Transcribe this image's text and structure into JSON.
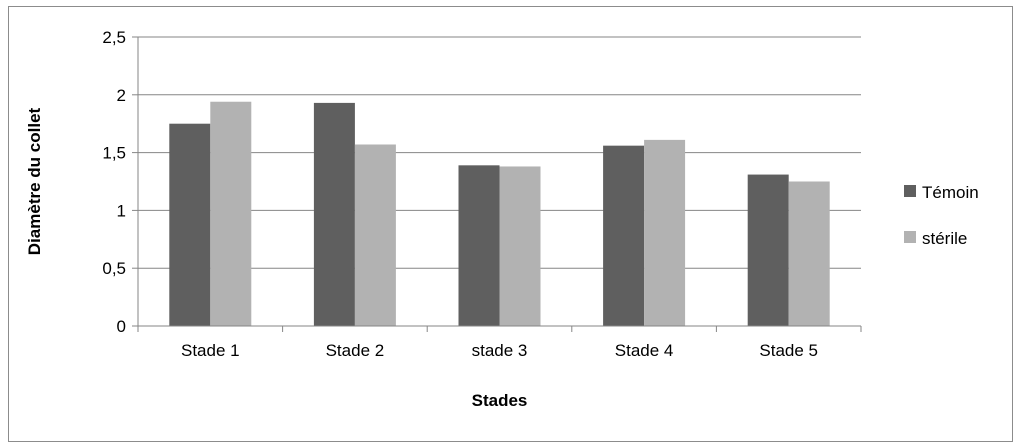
{
  "chart_data": {
    "type": "bar",
    "title": "",
    "xlabel": "Stades",
    "ylabel": "Diamètre du collet",
    "categories": [
      "Stade 1",
      "Stade 2",
      "stade 3",
      "Stade 4",
      "Stade 5"
    ],
    "series": [
      {
        "name": "Témoin",
        "values": [
          1.75,
          1.93,
          1.39,
          1.56,
          1.31
        ],
        "color": "#5f5f5f"
      },
      {
        "name": "stérile",
        "values": [
          1.94,
          1.57,
          1.38,
          1.61,
          1.25
        ],
        "color": "#b2b2b2"
      }
    ],
    "ylim": [
      0,
      2.5
    ],
    "yticks": [
      0,
      0.5,
      1,
      1.5,
      2,
      2.5
    ],
    "ytick_labels": [
      "0",
      "0,5",
      "1",
      "1,5",
      "2",
      "2,5"
    ],
    "grid": true,
    "legend_position": "right"
  }
}
